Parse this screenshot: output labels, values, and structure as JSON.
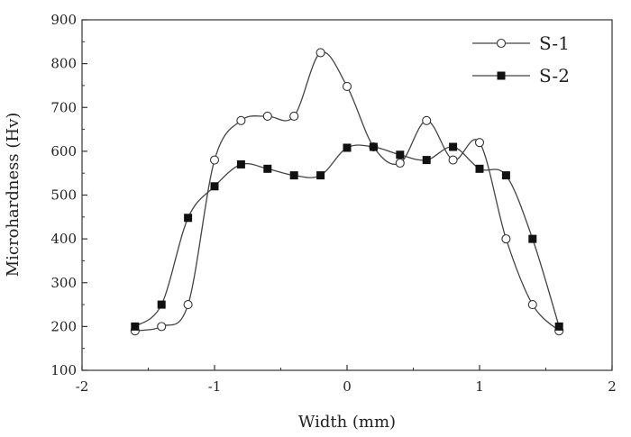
{
  "chart_data": {
    "type": "scatter",
    "title": "",
    "xlabel": "Width (mm)",
    "ylabel": "Microhardness (Hv)",
    "xlim": [
      -2,
      2
    ],
    "ylim": [
      100,
      900
    ],
    "xticks": [
      -2,
      -1,
      0,
      1,
      2
    ],
    "yticks": [
      100,
      200,
      300,
      400,
      500,
      600,
      700,
      800,
      900
    ],
    "legend_position": "top-right",
    "grid": false,
    "series": [
      {
        "name": "S-1",
        "marker": "open-circle",
        "x": [
          -1.6,
          -1.4,
          -1.2,
          -1.0,
          -0.8,
          -0.6,
          -0.4,
          -0.2,
          0.0,
          0.2,
          0.4,
          0.6,
          0.8,
          1.0,
          1.2,
          1.4,
          1.6
        ],
        "y": [
          190,
          200,
          250,
          580,
          670,
          680,
          680,
          825,
          748,
          610,
          573,
          670,
          580,
          620,
          400,
          250,
          190
        ]
      },
      {
        "name": "S-2",
        "marker": "filled-square",
        "x": [
          -1.6,
          -1.4,
          -1.2,
          -1.0,
          -0.8,
          -0.6,
          -0.4,
          -0.2,
          0.0,
          0.2,
          0.4,
          0.6,
          0.8,
          1.0,
          1.2,
          1.4,
          1.6
        ],
        "y": [
          200,
          250,
          448,
          520,
          570,
          560,
          545,
          545,
          608,
          610,
          592,
          580,
          610,
          560,
          545,
          400,
          200
        ]
      }
    ]
  }
}
